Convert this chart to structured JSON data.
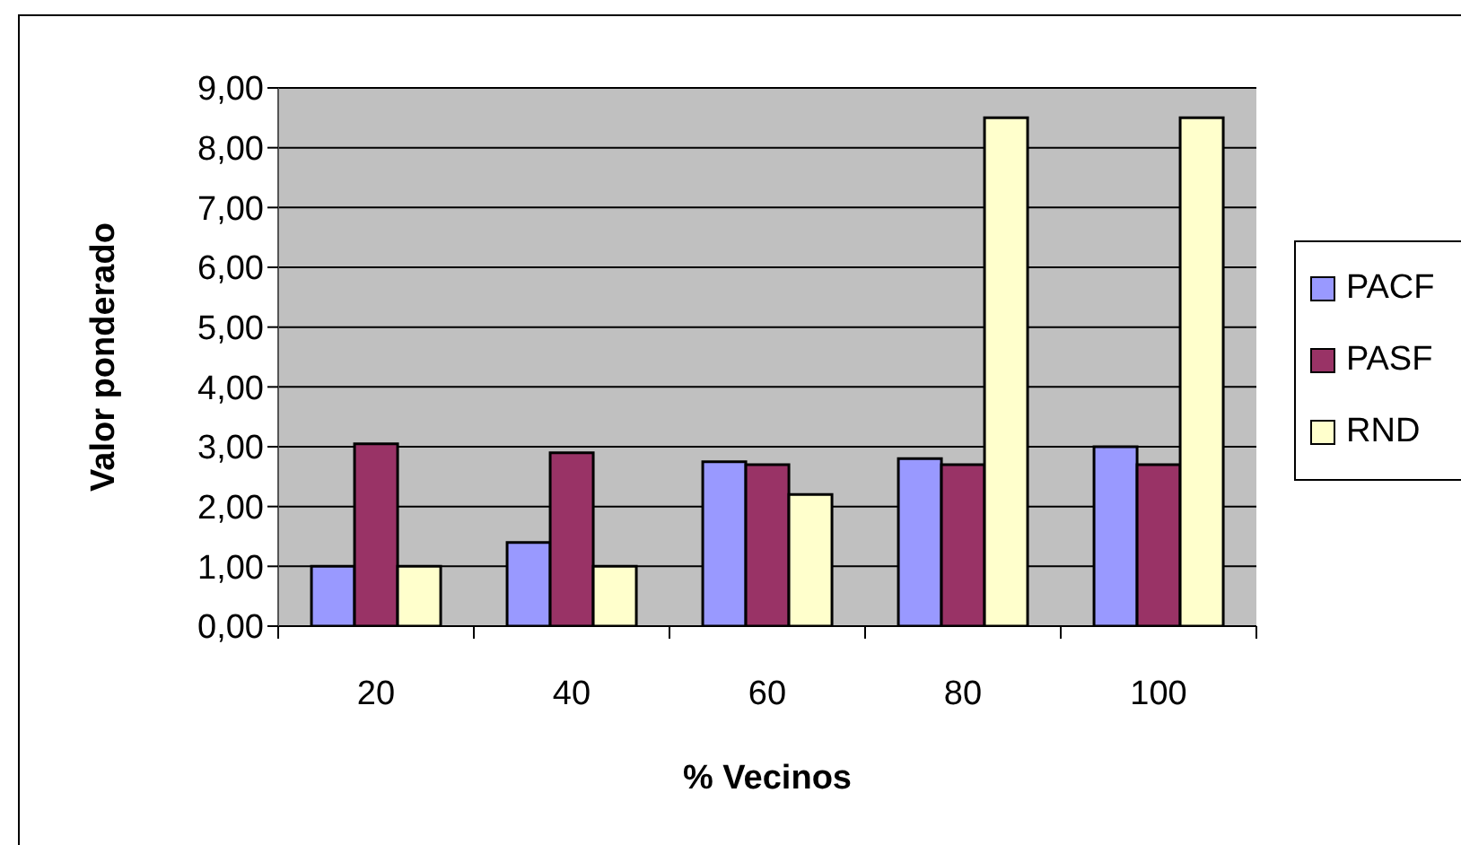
{
  "chart_data": {
    "type": "bar",
    "xlabel": "% Vecinos",
    "ylabel": "Valor ponderado",
    "categories": [
      "20",
      "40",
      "60",
      "80",
      "100"
    ],
    "series": [
      {
        "name": "PACF",
        "color": "#9999ff",
        "values": [
          1.0,
          1.4,
          2.75,
          2.8,
          3.0
        ]
      },
      {
        "name": "PASF",
        "color": "#993366",
        "values": [
          3.05,
          2.9,
          2.7,
          2.7,
          2.7
        ]
      },
      {
        "name": "RND",
        "color": "#ffffcc",
        "values": [
          1.0,
          1.0,
          2.2,
          8.5,
          8.5
        ]
      }
    ],
    "ylim": [
      0,
      9
    ],
    "yticks": [
      {
        "value": 0,
        "label": "0,00"
      },
      {
        "value": 1,
        "label": "1,00"
      },
      {
        "value": 2,
        "label": "2,00"
      },
      {
        "value": 3,
        "label": "3,00"
      },
      {
        "value": 4,
        "label": "4,00"
      },
      {
        "value": 5,
        "label": "5,00"
      },
      {
        "value": 6,
        "label": "6,00"
      },
      {
        "value": 7,
        "label": "7,00"
      },
      {
        "value": 8,
        "label": "8,00"
      },
      {
        "value": 9,
        "label": "9,00"
      }
    ],
    "grid": "y",
    "legend": "right"
  }
}
